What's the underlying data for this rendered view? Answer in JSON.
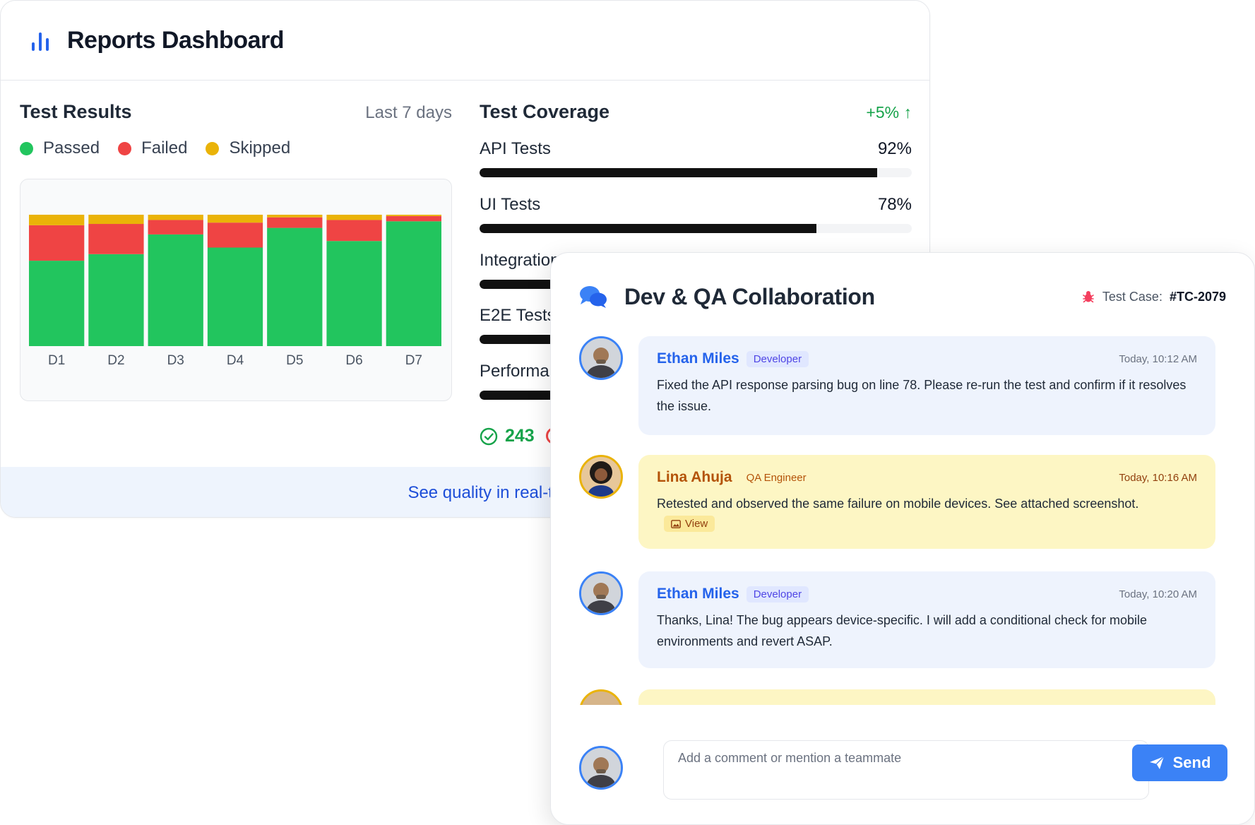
{
  "dashboard": {
    "title": "Reports Dashboard",
    "icon": "bar-chart-icon",
    "test_results": {
      "title": "Test Results",
      "range": "Last 7 days",
      "legend": [
        {
          "label": "Passed",
          "color": "#22c55e"
        },
        {
          "label": "Failed",
          "color": "#ef4444"
        },
        {
          "label": "Skipped",
          "color": "#eab308"
        }
      ]
    },
    "coverage": {
      "title": "Test Coverage",
      "delta": "+5% ↑",
      "items": [
        {
          "label": "API Tests",
          "value": "92%",
          "fraction": 0.92
        },
        {
          "label": "UI Tests",
          "value": "78%",
          "fraction": 0.78
        },
        {
          "label": "Integration",
          "value": "",
          "fraction": 0.55
        },
        {
          "label": "E2E Tests",
          "value": "",
          "fraction": 0.6
        },
        {
          "label": "Performa",
          "value": "",
          "fraction": 0.5
        }
      ]
    },
    "stats": {
      "passed": "243"
    },
    "footer": "See quality in real-time"
  },
  "chart_data": {
    "type": "bar",
    "stacked": true,
    "categories": [
      "D1",
      "D2",
      "D3",
      "D4",
      "D5",
      "D6",
      "D7"
    ],
    "series": [
      {
        "name": "Passed",
        "color": "#22c55e",
        "values": [
          65,
          70,
          85,
          75,
          90,
          80,
          95
        ]
      },
      {
        "name": "Failed",
        "color": "#ef4444",
        "values": [
          27,
          23,
          11,
          19,
          8,
          16,
          4
        ]
      },
      {
        "name": "Skipped",
        "color": "#eab308",
        "values": [
          8,
          7,
          4,
          6,
          2,
          4,
          1
        ]
      }
    ],
    "ylim": [
      0,
      100
    ],
    "grid": false,
    "legend": "top-left"
  },
  "collab": {
    "title": "Dev & QA Collaboration",
    "icon": "chat-bubbles-icon",
    "test_case_label": "Test Case:",
    "test_case_id": "#TC-2079",
    "messages": [
      {
        "name": "Ethan Miles",
        "role": "Developer",
        "kind": "dev",
        "time": "Today, 10:12 AM",
        "text": "Fixed the API response parsing bug on line 78. Please re-run the test and confirm if it resolves the issue."
      },
      {
        "name": "Lina Ahuja",
        "role": "QA Engineer",
        "kind": "qa",
        "time": "Today, 10:16 AM",
        "text": "Retested and observed the same failure on mobile devices. See attached screenshot.",
        "attachment": "View"
      },
      {
        "name": "Ethan Miles",
        "role": "Developer",
        "kind": "dev",
        "time": "Today, 10:20 AM",
        "text": "Thanks, Lina! The bug appears device-specific. I will add a conditional check for mobile environments and revert ASAP."
      }
    ],
    "composer": {
      "placeholder": "Add a comment or mention a teammate",
      "send_label": "Send"
    }
  }
}
